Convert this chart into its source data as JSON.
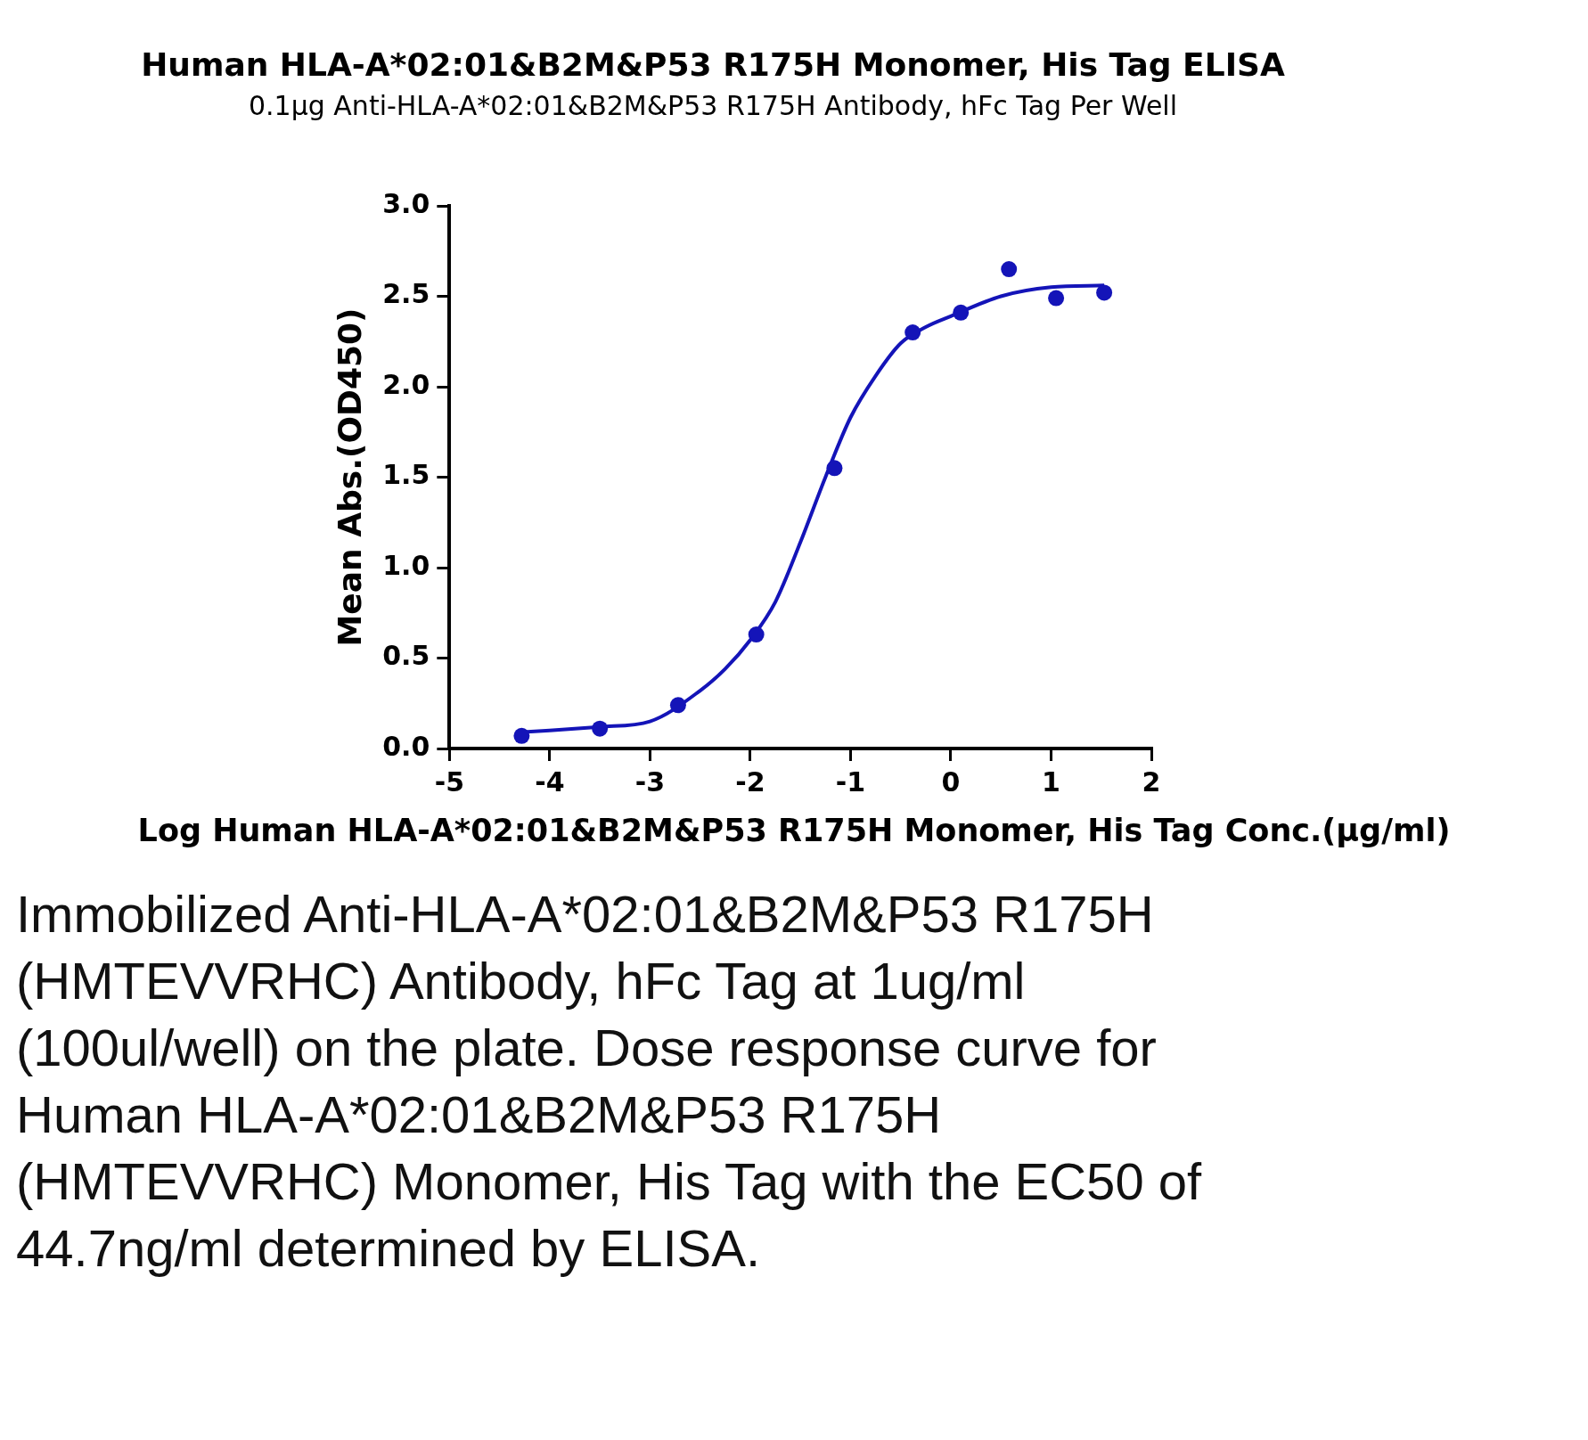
{
  "chart_data": {
    "type": "scatter",
    "title": "Human HLA-A*02:01&B2M&P53 R175H Monomer, His Tag ELISA",
    "subtitle": "0.1μg Anti-HLA-A*02:01&B2M&P53 R175H Antibody, hFc Tag Per Well",
    "xlabel": "Log Human HLA-A*02:01&B2M&P53 R175H Monomer, His Tag Conc.(μg/ml)",
    "ylabel": "Mean Abs.(OD450)",
    "xlim": [
      -5,
      2
    ],
    "xticks": [
      -5,
      -4,
      -3,
      -2,
      -1,
      0,
      1,
      2
    ],
    "ylim": [
      0,
      3
    ],
    "yticks": [
      {
        "value": 0,
        "label": "0.0"
      },
      {
        "value": 0.5,
        "label": "0.5"
      },
      {
        "value": 1,
        "label": "1.0"
      },
      {
        "value": 1.5,
        "label": "1.5"
      },
      {
        "value": 2,
        "label": "2.0"
      },
      {
        "value": 2.5,
        "label": "2.5"
      },
      {
        "value": 3,
        "label": "3.0"
      }
    ],
    "grid": false,
    "legend": false,
    "series": [
      {
        "type": "scatter",
        "marker": "circle",
        "color": "#1414b8",
        "x": [
          -4.28,
          -3.5,
          -2.72,
          -1.94,
          -1.16,
          -0.38,
          0.1,
          0.58,
          1.05,
          1.53
        ],
        "values": [
          0.07,
          0.11,
          0.24,
          0.63,
          1.55,
          2.3,
          2.41,
          2.65,
          2.49,
          2.52
        ]
      },
      {
        "type": "line",
        "color": "#1414b8",
        "line_style": "solid",
        "x": [
          -4.28,
          -4,
          -3.5,
          -3,
          -2.5,
          -2.25,
          -2,
          -1.75,
          -1.5,
          -1.25,
          -1,
          -0.75,
          -0.5,
          -0.25,
          0,
          0.5,
          1,
          1.53
        ],
        "values": [
          0.09,
          0.1,
          0.12,
          0.15,
          0.32,
          0.44,
          0.6,
          0.81,
          1.14,
          1.5,
          1.83,
          2.06,
          2.24,
          2.33,
          2.39,
          2.5,
          2.55,
          2.56
        ]
      }
    ],
    "annotations": [
      "Immobilized Anti-HLA-A*02:01&B2M&P53 R175H (HMTEVVRHC) Antibody, hFc Tag at 1ug/ml (100ul/well) on the plate. Dose response curve for Human HLA-A*02:01&B2M&P53 R175H (HMTEVVRHC) Monomer, His Tag with the EC50 of 44.7ng/ml determined by ELISA."
    ]
  }
}
